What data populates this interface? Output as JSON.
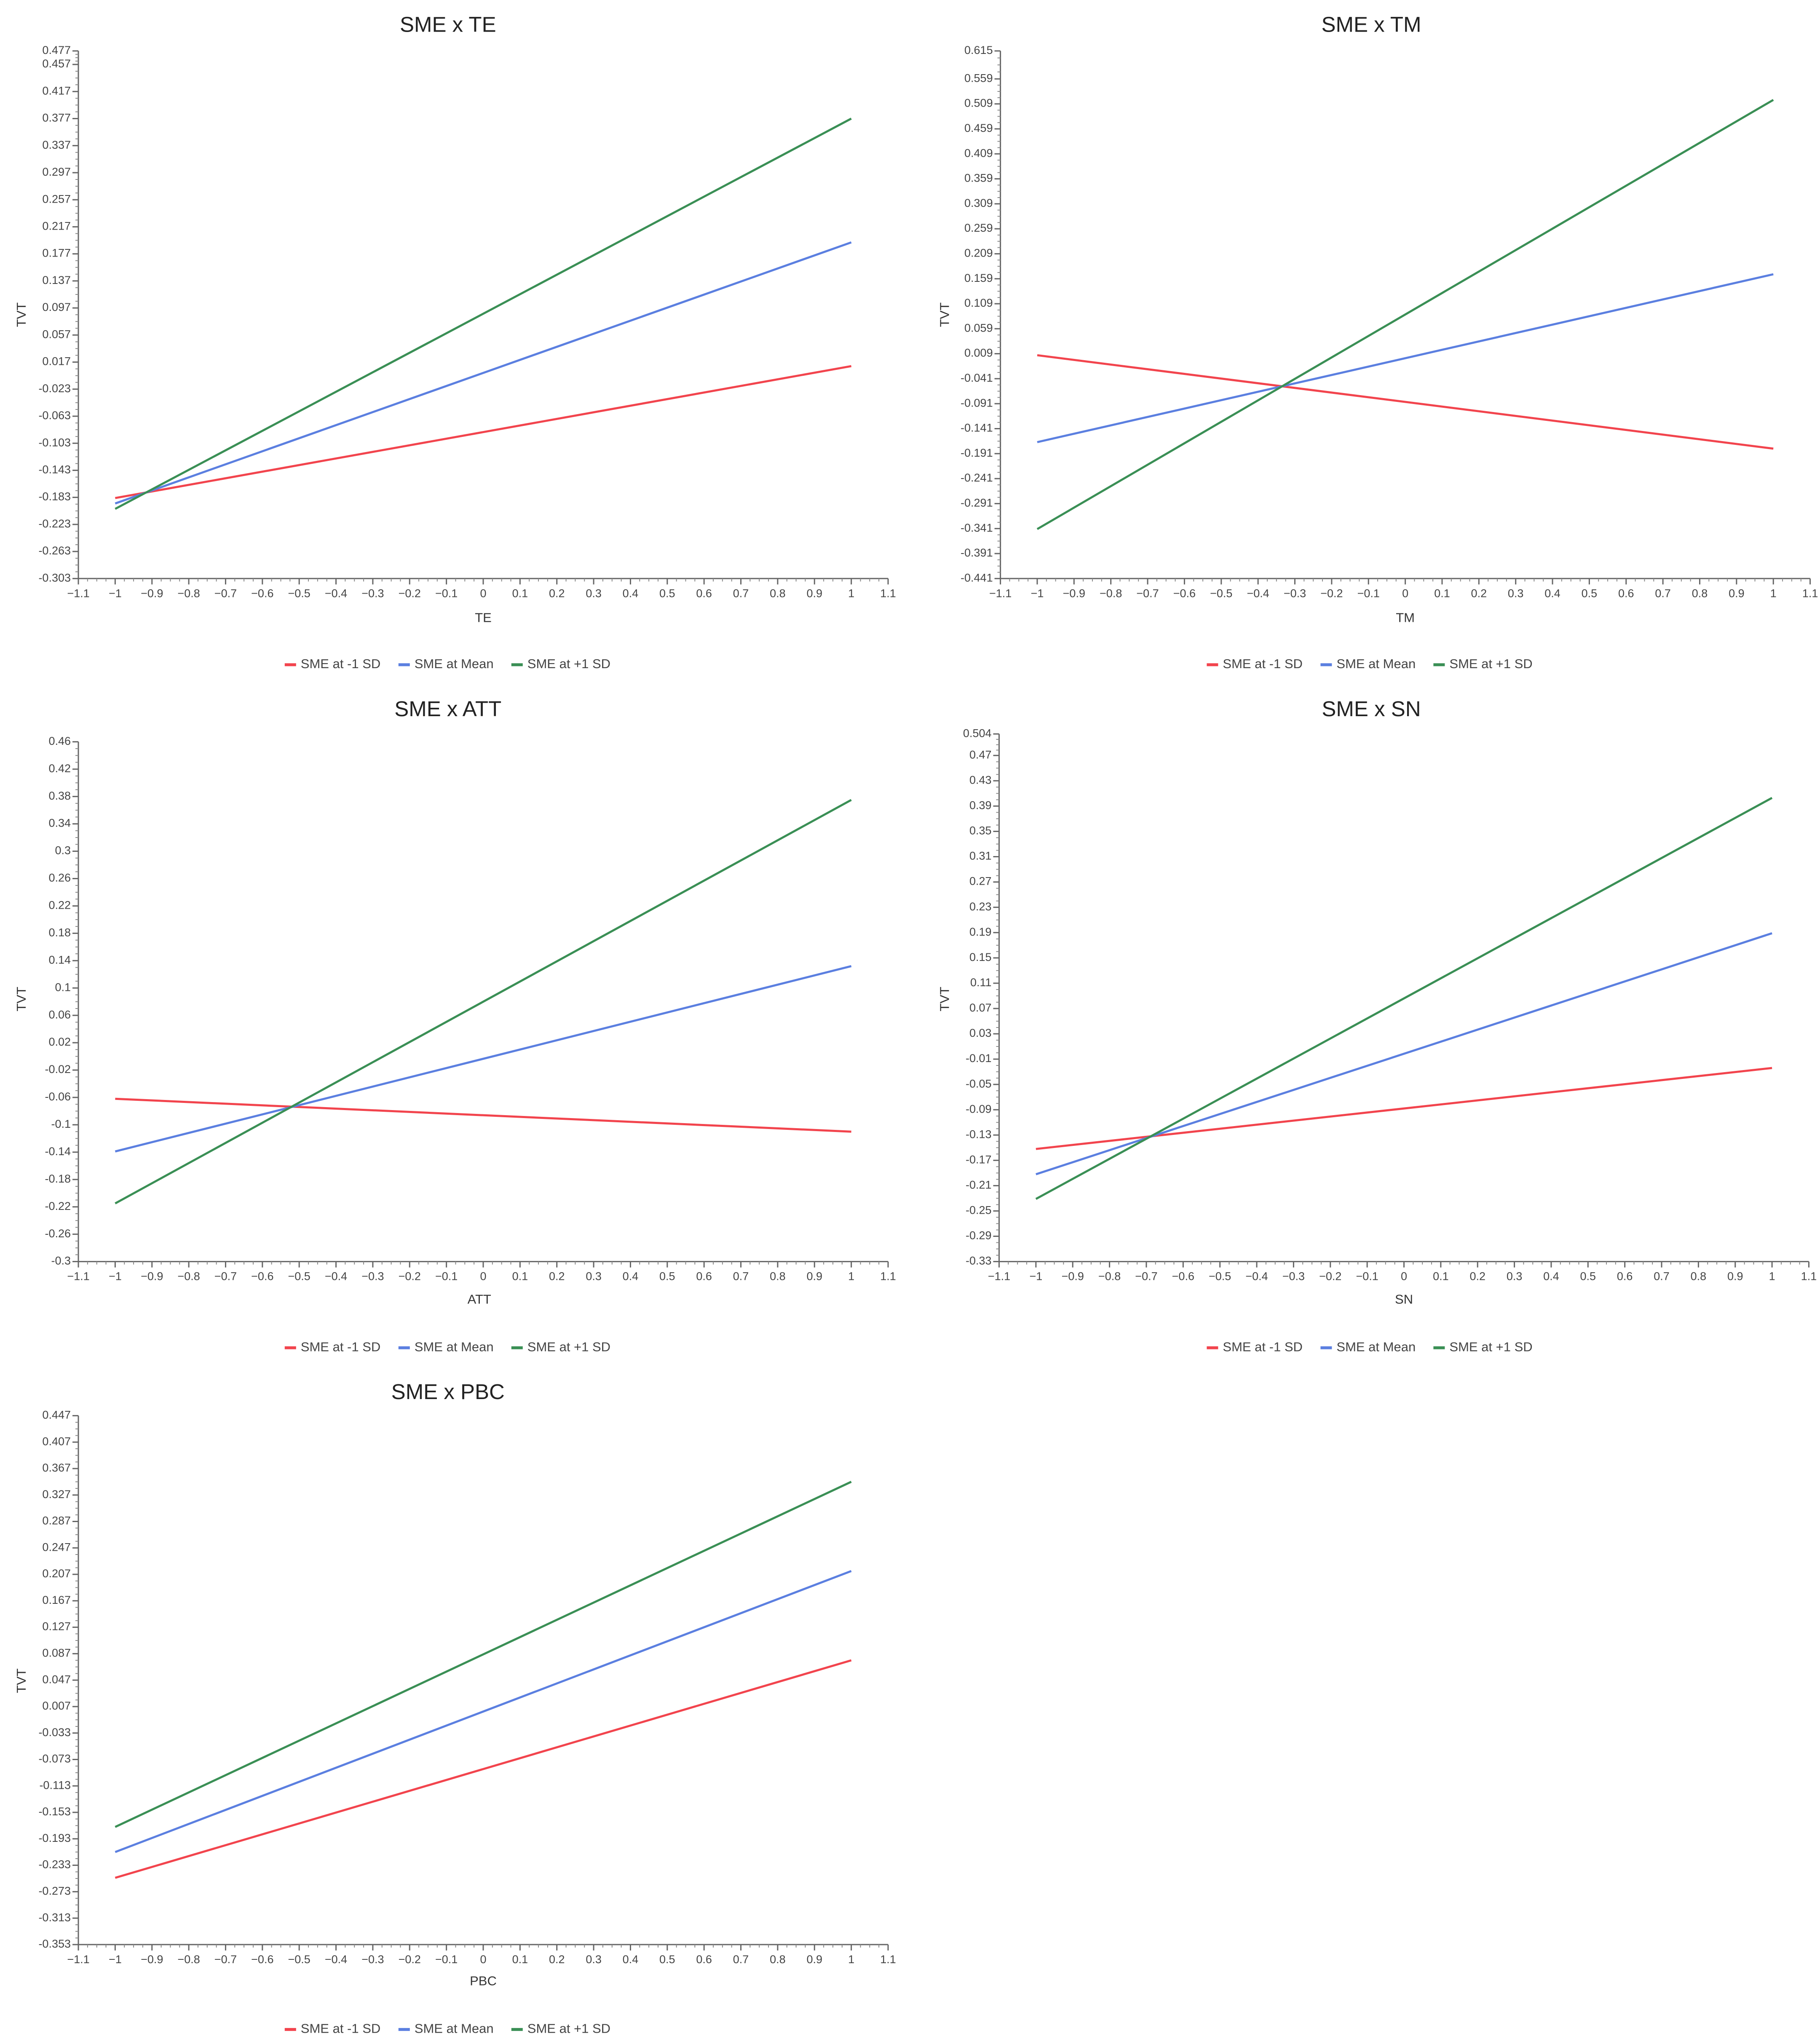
{
  "chart_data": [
    {
      "type": "line",
      "title": "SME x TE",
      "xlabel": "TE",
      "ylabel": "TVT",
      "xlim": [
        -1.1,
        1.1
      ],
      "ylim": [
        -0.303,
        0.477
      ],
      "x_ticks": [
        "-1.1",
        "-1",
        "-0.9",
        "-0.8",
        "-0.7",
        "-0.6",
        "-0.5",
        "-0.4",
        "-0.3",
        "-0.2",
        "-0.1",
        "0",
        "0.1",
        "0.2",
        "0.3",
        "0.4",
        "0.5",
        "0.6",
        "0.7",
        "0.8",
        "0.9",
        "1",
        "1.1"
      ],
      "y_ticks": [
        "0.477",
        "0.457",
        "0.417",
        "0.377",
        "0.337",
        "0.297",
        "0.257",
        "0.217",
        "0.177",
        "0.137",
        "0.097",
        "0.057",
        "0.017",
        "-0.023",
        "-0.063",
        "-0.103",
        "-0.143",
        "-0.183",
        "-0.223",
        "-0.263",
        "-0.303"
      ],
      "x": [
        -1,
        1
      ],
      "series": [
        {
          "name": "SME at -1 SD",
          "color": "#f2444d",
          "values": [
            -0.184,
            0.011
          ]
        },
        {
          "name": "SME at Mean",
          "color": "#5b7fe0",
          "values": [
            -0.192,
            0.194
          ]
        },
        {
          "name": "SME at +1 SD",
          "color": "#3a8f55",
          "values": [
            -0.2,
            0.377
          ]
        }
      ],
      "legend": "bottom-center"
    },
    {
      "type": "line",
      "title": "SME x TM",
      "xlabel": "TM",
      "ylabel": "TVT",
      "xlim": [
        -1.1,
        1.1
      ],
      "ylim": [
        -0.441,
        0.615
      ],
      "x_ticks": [
        "-1.1",
        "-1",
        "-0.9",
        "-0.8",
        "-0.7",
        "-0.6",
        "-0.5",
        "-0.4",
        "-0.3",
        "-0.2",
        "-0.1",
        "0",
        "0.1",
        "0.2",
        "0.3",
        "0.4",
        "0.5",
        "0.6",
        "0.7",
        "0.8",
        "0.9",
        "1",
        "1.1"
      ],
      "y_ticks": [
        "0.615",
        "0.559",
        "0.509",
        "0.459",
        "0.409",
        "0.359",
        "0.309",
        "0.259",
        "0.209",
        "0.159",
        "0.109",
        "0.059",
        "0.009",
        "-0.041",
        "-0.091",
        "-0.141",
        "-0.191",
        "-0.241",
        "-0.291",
        "-0.341",
        "-0.391",
        "-0.441"
      ],
      "x": [
        -1,
        1
      ],
      "series": [
        {
          "name": "SME at -1 SD",
          "color": "#f2444d",
          "values": [
            0.006,
            -0.181
          ]
        },
        {
          "name": "SME at Mean",
          "color": "#5b7fe0",
          "values": [
            -0.168,
            0.168
          ]
        },
        {
          "name": "SME at +1 SD",
          "color": "#3a8f55",
          "values": [
            -0.342,
            0.517
          ]
        }
      ],
      "legend": "bottom-center"
    },
    {
      "type": "line",
      "title": "SME x ATT",
      "xlabel": "ATT",
      "ylabel": "TVT",
      "xlim": [
        -1.1,
        1.1
      ],
      "ylim": [
        -0.3,
        0.46
      ],
      "x_ticks": [
        "-1.1",
        "-1",
        "-0.9",
        "-0.8",
        "-0.7",
        "-0.6",
        "-0.5",
        "-0.4",
        "-0.3",
        "-0.2",
        "-0.1",
        "0",
        "0.1",
        "0.2",
        "0.3",
        "0.4",
        "0.5",
        "0.6",
        "0.7",
        "0.8",
        "0.9",
        "1",
        "1.1"
      ],
      "y_ticks": [
        "0.46",
        "0.42",
        "0.38",
        "0.34",
        "0.3",
        "0.26",
        "0.22",
        "0.18",
        "0.14",
        "0.1",
        "0.06",
        "0.02",
        "-0.02",
        "-0.06",
        "-0.1",
        "-0.14",
        "-0.18",
        "-0.22",
        "-0.26",
        "-0.3"
      ],
      "x": [
        -1,
        1
      ],
      "series": [
        {
          "name": "SME at -1 SD",
          "color": "#f2444d",
          "values": [
            -0.062,
            -0.11
          ]
        },
        {
          "name": "SME at Mean",
          "color": "#5b7fe0",
          "values": [
            -0.139,
            0.132
          ]
        },
        {
          "name": "SME at +1 SD",
          "color": "#3a8f55",
          "values": [
            -0.215,
            0.375
          ]
        }
      ],
      "legend": "bottom-center"
    },
    {
      "type": "line",
      "title": "SME x SN",
      "xlabel": "SN",
      "ylabel": "TVT",
      "xlim": [
        -1.1,
        1.1
      ],
      "ylim": [
        -0.33,
        0.504
      ],
      "x_ticks": [
        "-1.1",
        "-1",
        "-0.9",
        "-0.8",
        "-0.7",
        "-0.6",
        "-0.5",
        "-0.4",
        "-0.3",
        "-0.2",
        "-0.1",
        "0",
        "0.1",
        "0.2",
        "0.3",
        "0.4",
        "0.5",
        "0.6",
        "0.7",
        "0.8",
        "0.9",
        "1",
        "1.1"
      ],
      "y_ticks": [
        "0.504",
        "0.47",
        "0.43",
        "0.39",
        "0.35",
        "0.31",
        "0.27",
        "0.23",
        "0.19",
        "0.15",
        "0.11",
        "0.07",
        "0.03",
        "-0.01",
        "-0.05",
        "-0.09",
        "-0.13",
        "-0.17",
        "-0.21",
        "-0.25",
        "-0.29",
        "-0.33"
      ],
      "x": [
        -1,
        1
      ],
      "series": [
        {
          "name": "SME at -1 SD",
          "color": "#f2444d",
          "values": [
            -0.152,
            -0.024
          ]
        },
        {
          "name": "SME at Mean",
          "color": "#5b7fe0",
          "values": [
            -0.192,
            0.189
          ]
        },
        {
          "name": "SME at +1 SD",
          "color": "#3a8f55",
          "values": [
            -0.231,
            0.403
          ]
        }
      ],
      "legend": "bottom-center"
    },
    {
      "type": "line",
      "title": "SME x PBC",
      "xlabel": "PBC",
      "ylabel": "TVT",
      "xlim": [
        -1.1,
        1.1
      ],
      "ylim": [
        -0.353,
        0.447
      ],
      "x_ticks": [
        "-1.1",
        "-1",
        "-0.9",
        "-0.8",
        "-0.7",
        "-0.6",
        "-0.5",
        "-0.4",
        "-0.3",
        "-0.2",
        "-0.1",
        "0",
        "0.1",
        "0.2",
        "0.3",
        "0.4",
        "0.5",
        "0.6",
        "0.7",
        "0.8",
        "0.9",
        "1",
        "1.1"
      ],
      "y_ticks": [
        "0.447",
        "0.407",
        "0.367",
        "0.327",
        "0.287",
        "0.247",
        "0.207",
        "0.167",
        "0.127",
        "0.087",
        "0.047",
        "0.007",
        "-0.033",
        "-0.073",
        "-0.113",
        "-0.153",
        "-0.193",
        "-0.233",
        "-0.273",
        "-0.313",
        "-0.353"
      ],
      "x": [
        -1,
        1
      ],
      "series": [
        {
          "name": "SME at -1 SD",
          "color": "#f2444d",
          "values": [
            -0.252,
            0.077
          ]
        },
        {
          "name": "SME at Mean",
          "color": "#5b7fe0",
          "values": [
            -0.213,
            0.212
          ]
        },
        {
          "name": "SME at +1 SD",
          "color": "#3a8f55",
          "values": [
            -0.175,
            0.347
          ]
        }
      ],
      "legend": "bottom-center"
    }
  ]
}
